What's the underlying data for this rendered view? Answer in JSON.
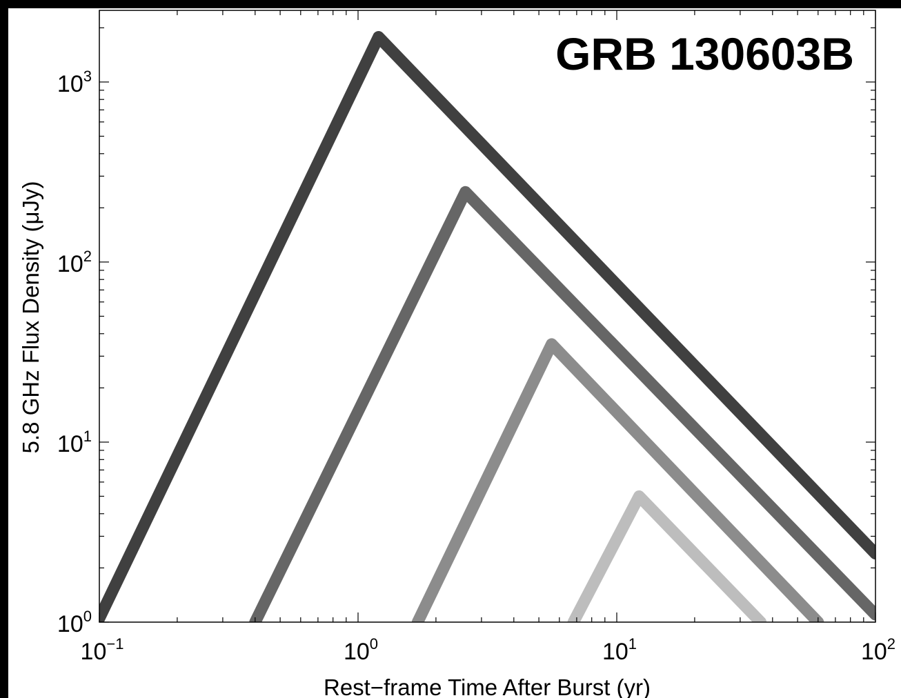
{
  "chart_data": {
    "type": "line",
    "title": "GRB 130603B",
    "xlabel": "Rest−frame Time After Burst (yr)",
    "ylabel": "5.8 GHz Flux Density (μJy)",
    "xscale": "log",
    "yscale": "log",
    "xlim": [
      0.1,
      100
    ],
    "ylim": [
      1,
      2500
    ],
    "x_ticks": [
      {
        "value": 0.1,
        "base": "10",
        "exp": "−1"
      },
      {
        "value": 1,
        "base": "10",
        "exp": "0"
      },
      {
        "value": 10,
        "base": "10",
        "exp": "1"
      },
      {
        "value": 100,
        "base": "10",
        "exp": "2"
      }
    ],
    "y_ticks": [
      {
        "value": 1,
        "base": "10",
        "exp": "0"
      },
      {
        "value": 10,
        "base": "10",
        "exp": "1"
      },
      {
        "value": 100,
        "base": "10",
        "exp": "2"
      },
      {
        "value": 1000,
        "base": "10",
        "exp": "3"
      }
    ],
    "grid": false,
    "legend": "none",
    "series": [
      {
        "color": "#404040",
        "points": [
          [
            0.1,
            1.05
          ],
          [
            1.2,
            1780
          ],
          [
            100,
            2.4
          ]
        ]
      },
      {
        "color": "#666666",
        "points": [
          [
            0.4,
            1.0
          ],
          [
            2.6,
            245
          ],
          [
            100,
            1.1
          ]
        ]
      },
      {
        "color": "#8c8c8c",
        "points": [
          [
            1.7,
            1.0
          ],
          [
            5.6,
            35
          ],
          [
            60,
            1.0
          ]
        ]
      },
      {
        "color": "#bdbdbd",
        "points": [
          [
            6.8,
            1.0
          ],
          [
            12.2,
            5.0
          ],
          [
            36,
            1.0
          ]
        ]
      }
    ]
  }
}
